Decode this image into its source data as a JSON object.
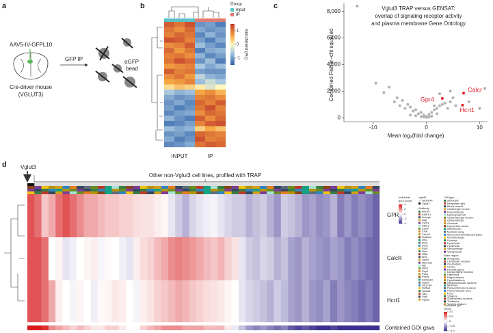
{
  "panel_labels": [
    "a",
    "b",
    "c",
    "d"
  ],
  "a": {
    "virus": "AAV5-IV-GFPL10",
    "step": "GFP IP",
    "bead": [
      "αGFP",
      "bead"
    ],
    "mouse": [
      "Cre-driver mouse",
      "(VGLUT3)"
    ]
  },
  "b": {
    "type": "heatmap",
    "columns": [
      "INPUT",
      "IP"
    ],
    "group_title": "Group",
    "groups": [
      {
        "name": "Input",
        "color": "#5bc0c8"
      },
      {
        "name": "IP",
        "color": "#e07b72"
      }
    ],
    "colorbar_title": "Enrichment (AU)",
    "clim": [
      -1.5,
      1.5
    ],
    "cticks": [
      1,
      0,
      -1
    ],
    "rows": [
      [
        1.2,
        1.0,
        1.3,
        -1.0,
        -0.9,
        -1.2
      ],
      [
        1.0,
        0.8,
        1.1,
        -0.8,
        -1.0,
        -0.9
      ],
      [
        0.9,
        1.1,
        1.0,
        -1.1,
        -0.7,
        -1.0
      ],
      [
        1.3,
        1.2,
        0.9,
        -0.9,
        -1.2,
        -0.8
      ],
      [
        0.8,
        0.9,
        1.2,
        -0.6,
        -0.9,
        -1.1
      ],
      [
        1.1,
        0.7,
        1.0,
        -1.2,
        -0.8,
        -0.7
      ],
      [
        0.9,
        1.0,
        0.8,
        -0.7,
        -1.1,
        -0.9
      ],
      [
        1.0,
        1.3,
        1.1,
        -1.0,
        -0.6,
        -1.2
      ],
      [
        0.7,
        0.8,
        0.9,
        -0.5,
        -0.8,
        -0.6
      ],
      [
        1.2,
        0.9,
        1.0,
        -0.9,
        -1.0,
        -1.0
      ],
      [
        0.8,
        1.0,
        0.7,
        -0.4,
        -0.7,
        -0.8
      ],
      [
        0.6,
        0.7,
        0.9,
        -0.6,
        -0.3,
        -0.5
      ],
      [
        0.2,
        0.4,
        0.3,
        0.1,
        -0.2,
        0.0
      ],
      [
        -0.5,
        -0.7,
        -0.6,
        0.6,
        0.8,
        0.5
      ],
      [
        -0.8,
        -1.0,
        -0.9,
        0.9,
        1.0,
        0.8
      ],
      [
        -1.0,
        -0.8,
        -1.1,
        1.1,
        0.9,
        1.2
      ],
      [
        -0.9,
        -1.2,
        -1.0,
        1.0,
        1.3,
        0.9
      ],
      [
        -1.1,
        -0.9,
        -0.8,
        0.8,
        1.1,
        1.0
      ],
      [
        -0.7,
        -1.0,
        -1.2,
        1.2,
        0.8,
        1.1
      ],
      [
        -1.2,
        -1.1,
        -0.9,
        0.9,
        1.2,
        1.3
      ],
      [
        -0.6,
        -0.8,
        -0.7,
        0.3,
        0.6,
        0.4
      ],
      [
        -1.0,
        -0.9,
        -1.1,
        1.1,
        1.0,
        0.9
      ],
      [
        -0.8,
        -1.2,
        -1.0,
        1.3,
        0.9,
        1.0
      ],
      [
        -1.1,
        -1.0,
        -0.8,
        1.0,
        1.2,
        1.1
      ]
    ]
  },
  "c": {
    "type": "scatter",
    "title": [
      "Vglut3 TRAP versus GENSAT:",
      "overlap of signaling receptor activity",
      "and plasma membrane Gene Ontology"
    ],
    "x_label": "Mean log₂(fold change)",
    "y_label": "Combined Fisher–chi squared",
    "xlim": [
      -15.5,
      11.5
    ],
    "ylim": [
      -300,
      8600
    ],
    "xticks": [
      -10,
      0,
      10
    ],
    "yticks": [
      0,
      {
        "value": 2000,
        "label": "2,000"
      },
      {
        "value": 4000,
        "label": "4,000"
      },
      {
        "value": 6000,
        "label": "6,000"
      },
      {
        "value": 8000,
        "label": "8,000"
      }
    ],
    "color": "#b0b0b0",
    "x": [
      -13,
      -9.5,
      -8,
      -7,
      -6,
      -5.5,
      -5,
      -4.5,
      -4,
      -3.5,
      -3,
      -2.5,
      -2,
      -1.5,
      -1,
      -0.5,
      0,
      0.5,
      1,
      1.5,
      2,
      2.5,
      3,
      3.5,
      4,
      4.5,
      5,
      5.5,
      -3,
      -2,
      -1,
      0,
      1,
      2,
      0.5,
      -0.5,
      1.5,
      2.5,
      10,
      11,
      4.5,
      8
    ],
    "y": [
      8400,
      2600,
      1900,
      2300,
      1200,
      1500,
      900,
      1300,
      700,
      1000,
      800,
      500,
      600,
      300,
      400,
      200,
      100,
      250,
      400,
      600,
      700,
      900,
      1000,
      1100,
      700,
      1200,
      1500,
      900,
      200,
      150,
      80,
      30,
      120,
      300,
      50,
      60,
      900,
      1800,
      700,
      2200,
      2000,
      1200
    ],
    "highlight": {
      "color": "#e0202a",
      "names": [
        "Gpr4",
        "Calcr",
        "Hcrt1"
      ],
      "x": [
        3,
        7,
        6.8
      ],
      "y": [
        1450,
        1850,
        950
      ]
    }
  },
  "d": {
    "type": "heatmap",
    "marker": "Vglut3",
    "title": "Other non-Vglut3 cell lines, profiled with TRAP",
    "zlim": [
      -4,
      4
    ],
    "rows": [
      {
        "name": "GPR4",
        "values": [
          3,
          2.5,
          1,
          1.5,
          2.5,
          3,
          2.5,
          2,
          1.5,
          1.5,
          1.2,
          1,
          1,
          0.8,
          0.8,
          0.6,
          0.5,
          0.5,
          0.3,
          0.2,
          -0.5,
          -1,
          -1.5,
          -0.8,
          -0.5,
          -0.3,
          -0.2,
          -0.5,
          -0.8,
          -1,
          -1,
          -1.5,
          -1.2,
          -1,
          -1.5,
          -2,
          -1,
          -1.2,
          -1.5,
          -2,
          -1.8,
          -2.2,
          -2,
          -1.5,
          -2.5,
          -2,
          -2.5,
          -2.2,
          -2.5,
          -3
        ]
      },
      {
        "name": "CalcR",
        "values": [
          3,
          3,
          2.5,
          0,
          0.2,
          -0.5,
          -0.3,
          0,
          0.2,
          0.3,
          -0.2,
          0.1,
          0,
          -0.3,
          -0.5,
          0.3,
          0.6,
          0.8,
          1.2,
          1.5,
          2,
          2.2,
          2,
          1.8,
          1.5,
          1.2,
          1,
          1.3,
          0.8,
          0.5,
          -0.5,
          -1,
          -1.2,
          -0.8,
          -1,
          -1.5,
          -1.2,
          -1.8,
          -2,
          -1.5,
          -1.8,
          -2,
          -2.2,
          -1.8,
          -2,
          -2.5,
          -2.2,
          -2.5,
          -2.8,
          -3
        ]
      },
      {
        "name": "Hcrt1",
        "values": [
          3,
          3,
          2.5,
          1.5,
          0.3,
          0,
          -0.2,
          0.2,
          0,
          -0.3,
          0.1,
          0.2,
          0.4,
          0.3,
          0,
          -0.2,
          0.3,
          0.5,
          0.8,
          1,
          1.2,
          1.5,
          1.3,
          1,
          0.8,
          0.6,
          0.5,
          0.4,
          0.2,
          0,
          -0.5,
          -0.8,
          -1,
          -1.2,
          -1.5,
          -1,
          -1.3,
          -1.8,
          -2,
          -1.5,
          -2,
          -2.2,
          -1.8,
          -2.5,
          -2,
          -2.3,
          -2.5,
          -2.8,
          -2.5,
          -3
        ]
      }
    ],
    "gsva": {
      "name": "Combined GOI gsva",
      "lim": [
        -1,
        1
      ],
      "values": [
        1,
        1,
        0.9,
        0.5,
        0.4,
        0.3,
        0.2,
        0.3,
        0.2,
        0.1,
        0.1,
        0.2,
        0.2,
        0.1,
        0,
        0,
        0.2,
        0.3,
        0.4,
        0.5,
        0.5,
        0.5,
        0.4,
        0.4,
        0.4,
        0.3,
        0.3,
        0.3,
        0.1,
        -0.1,
        -0.3,
        -0.5,
        -0.6,
        -0.5,
        -0.6,
        -0.7,
        -0.6,
        -0.8,
        -0.9,
        -0.8,
        -0.9,
        -1,
        -1,
        -0.9,
        -1,
        -1,
        -1,
        -1,
        -1,
        -1
      ]
    },
    "legend": {
      "z_title": [
        "Individual",
        "goi z score"
      ],
      "zticks": [
        4,
        2,
        0,
        -2,
        -4
      ],
      "vglut3_title": "Vglut3",
      "vglut3_items": [
        "GENSAT",
        "Vglut3"
      ],
      "antibody_title": "Antibody",
      "antibody": [
        "Abcb4",
        "Aldh1l1",
        "Avsepe",
        "Aqp",
        "Cd2r1",
        "Cbln1",
        "Cdh8",
        "Chat",
        "Chrm2",
        "Dcdc2a",
        "Dlk1",
        "Drd1",
        "Drd2",
        "Epyc",
        "Hcrt",
        "Ht3a",
        "Itm1",
        "Lypd1",
        "Neurod1",
        "Nts",
        "Ntsr1",
        "Pcp2",
        "Penk",
        "Prkcd",
        "S100a10",
        "Sept4",
        "Slc17a6",
        "Slc6a4",
        "Slc6a3",
        "Tac1",
        "Syt6",
        "Vglut3"
      ],
      "celltype_title": "Cell type",
      "celltype": [
        "Astrocyte",
        "Bergmann glia",
        "Blood vessel",
        "Cholinergic neuron",
        "Dopaminergic",
        "Ependymal cell",
        "Glutamatergic neuron",
        "Glutamatergic",
        "Granular",
        "Hypocretin-orexin",
        "Interneuron",
        "Medium spiny",
        "Mixed neuron/Glial cell types",
        "Noradrenergic",
        "Purkinje",
        "Pyramidal",
        "Pyramidal",
        "Serotonergic",
        "Vasopressin"
      ],
      "region_title": "Brain region",
      "region": [
        "Amygdala",
        "Cerebellar nucleus",
        "Cerebellum",
        "Cortex",
        "Dentate gyrus",
        "Dorsal raphe nucleus",
        "Habenula",
        "Hippocampus",
        "Hypothalamus",
        "Interpeduncular nucleus",
        "Midbrain",
        "Paraventricular nucleus",
        "Periventricular area",
        "Pons",
        "Striatum",
        "Subthalamic nucleus",
        "Thalamus",
        "Ventral striatum"
      ],
      "gsva_title": [
        "Combined goi",
        "GSVA"
      ],
      "gsvaticks": [
        {
          "value": 1,
          "label": "1.0"
        },
        {
          "value": 0.5,
          "label": "0.5"
        },
        0,
        {
          "value": -0.5,
          "label": "−0.5"
        },
        {
          "value": -1,
          "label": "−1.0"
        }
      ]
    }
  }
}
